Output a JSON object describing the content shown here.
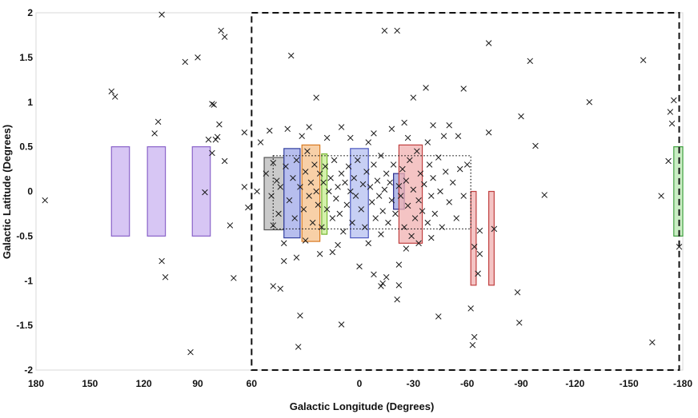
{
  "chart_data": {
    "type": "scatter",
    "title": "",
    "xlabel": "Galactic Longitude (Degrees)",
    "ylabel": "Galactic Latitude (Degrees)",
    "xlim": [
      180,
      -180
    ],
    "ylim": [
      -2,
      2
    ],
    "x_ticks": [
      180,
      150,
      120,
      90,
      60,
      0,
      -30,
      -60,
      -90,
      -120,
      -150,
      -180
    ],
    "x_tick_labels": [
      "180",
      "150",
      "120",
      "90",
      "60",
      "0",
      "-30",
      "-60",
      "-90",
      "-120",
      "-150",
      "-180"
    ],
    "y_ticks": [
      2,
      1.5,
      1,
      0.5,
      0,
      -0.5,
      -1,
      -1.5,
      -2
    ],
    "y_tick_labels": [
      "2",
      "1.5",
      "1",
      "0.5",
      "0",
      "-0.5",
      "-1",
      "-1.5",
      "-2"
    ],
    "grid": false,
    "legend": "none",
    "dashed_region": {
      "l_min": -178,
      "l_max": 60,
      "b_min": -2,
      "b_max": 2
    },
    "dotted_region": {
      "l_min": -62,
      "l_max": 48,
      "b_min": -0.42,
      "b_max": 0.4
    },
    "regions": [
      {
        "l_min": 128,
        "l_max": 138,
        "b_min": -0.5,
        "b_max": 0.5,
        "color": "#c9b3f0",
        "stroke": "#8a63c9"
      },
      {
        "l_min": 108,
        "l_max": 118,
        "b_min": -0.5,
        "b_max": 0.5,
        "color": "#c9b3f0",
        "stroke": "#8a63c9"
      },
      {
        "l_min": 83,
        "l_max": 93,
        "b_min": -0.5,
        "b_max": 0.5,
        "color": "#c9b3f0",
        "stroke": "#8a63c9"
      },
      {
        "l_min": 42,
        "l_max": 53,
        "b_min": -0.43,
        "b_max": 0.38,
        "color": "#b8b8b8",
        "stroke": "#555555"
      },
      {
        "l_min": 33,
        "l_max": 42,
        "b_min": -0.52,
        "b_max": 0.48,
        "color": "#9fa8e8",
        "stroke": "#3340a0"
      },
      {
        "l_min": 18,
        "l_max": 21,
        "b_min": -0.48,
        "b_max": 0.42,
        "color": "#c5ec8f",
        "stroke": "#78b832"
      },
      {
        "l_min": 22,
        "l_max": 32,
        "b_min": -0.56,
        "b_max": 0.52,
        "color": "#f6c08a",
        "stroke": "#d97a22"
      },
      {
        "l_min": -5,
        "l_max": 5,
        "b_min": -0.52,
        "b_max": 0.48,
        "color": "#b4bff0",
        "stroke": "#4a56c0"
      },
      {
        "l_min": -19,
        "l_max": -25,
        "b_min": -0.2,
        "b_max": 0.2,
        "color": "#9aa3e0",
        "stroke": "#2a2a8a"
      },
      {
        "l_min": -22,
        "l_max": -35,
        "b_min": -0.58,
        "b_max": 0.52,
        "color": "#f0b0b0",
        "stroke": "#c04040"
      },
      {
        "l_min": -62,
        "l_max": -65,
        "b_min": -1.05,
        "b_max": 0.0,
        "color": "#f0b0b0",
        "stroke": "#c04040"
      },
      {
        "l_min": -72,
        "l_max": -75,
        "b_min": -1.05,
        "b_max": 0.0,
        "color": "#f0b0b0",
        "stroke": "#c04040"
      },
      {
        "l_min": -175,
        "l_max": -180,
        "b_min": -0.5,
        "b_max": 0.5,
        "color": "#b8e8b0",
        "stroke": "#40a040"
      }
    ],
    "points": [
      [
        175,
        -0.1
      ],
      [
        138,
        1.12
      ],
      [
        136,
        1.06
      ],
      [
        110,
        1.98
      ],
      [
        112,
        0.78
      ],
      [
        110,
        -0.78
      ],
      [
        108,
        -0.96
      ],
      [
        114,
        0.65
      ],
      [
        97,
        1.45
      ],
      [
        90,
        1.5
      ],
      [
        94,
        -1.8
      ],
      [
        77,
        1.8
      ],
      [
        75,
        1.73
      ],
      [
        82,
        0.98
      ],
      [
        81,
        0.97
      ],
      [
        78,
        0.75
      ],
      [
        79,
        0.61
      ],
      [
        80,
        0.58
      ],
      [
        84,
        0.58
      ],
      [
        82,
        0.43
      ],
      [
        75,
        0.34
      ],
      [
        86,
        -0.01
      ],
      [
        72,
        -0.38
      ],
      [
        70,
        -0.97
      ],
      [
        62,
        -0.18
      ],
      [
        64,
        0.66
      ],
      [
        64,
        0.05
      ],
      [
        50,
        0.68
      ],
      [
        40,
        0.7
      ],
      [
        38,
        1.52
      ],
      [
        35,
        -0.74
      ],
      [
        33,
        -1.39
      ],
      [
        34,
        -1.74
      ],
      [
        48,
        -1.06
      ],
      [
        44,
        -1.09
      ],
      [
        42,
        -0.78
      ],
      [
        24,
        1.05
      ],
      [
        10,
        0.72
      ],
      [
        -14,
        1.8
      ],
      [
        -21,
        1.8
      ],
      [
        -25,
        0.77
      ],
      [
        -30,
        1.05
      ],
      [
        -37,
        1.16
      ],
      [
        -50,
        0.74
      ],
      [
        -58,
        1.15
      ],
      [
        -72,
        1.66
      ],
      [
        -72,
        0.66
      ],
      [
        -90,
        0.84
      ],
      [
        -95,
        1.46
      ],
      [
        -98,
        0.51
      ],
      [
        -103,
        -0.04
      ],
      [
        -128,
        1.0
      ],
      [
        -158,
        1.47
      ],
      [
        -163,
        -1.69
      ],
      [
        -168,
        -0.05
      ],
      [
        -172,
        0.34
      ],
      [
        -175,
        1.02
      ],
      [
        -173,
        0.89
      ],
      [
        -174,
        0.76
      ],
      [
        -178,
        -0.62
      ],
      [
        -88,
        -1.13
      ],
      [
        -89,
        -1.47
      ],
      [
        -62,
        -1.31
      ],
      [
        -64,
        -1.63
      ],
      [
        -63,
        -1.72
      ],
      [
        -64,
        -0.62
      ],
      [
        -66,
        -0.92
      ],
      [
        -67,
        -0.7
      ],
      [
        -75,
        -0.42
      ],
      [
        -67,
        -0.44
      ],
      [
        -44,
        -1.4
      ],
      [
        -22,
        -1.05
      ],
      [
        -21,
        -1.21
      ],
      [
        -13,
        -1.03
      ],
      [
        -15,
        -0.96
      ],
      [
        -8,
        -0.93
      ],
      [
        -12,
        -1.06
      ],
      [
        0,
        -0.84
      ],
      [
        10,
        -1.49
      ],
      [
        -22,
        -0.82
      ],
      [
        48,
        0.32
      ],
      [
        52,
        0.2
      ],
      [
        46,
        0.12
      ],
      [
        49,
        -0.05
      ],
      [
        45,
        -0.25
      ],
      [
        48,
        -0.38
      ],
      [
        44,
        0.05
      ],
      [
        41,
        0.28
      ],
      [
        39,
        -0.1
      ],
      [
        37,
        0.15
      ],
      [
        36,
        -0.3
      ],
      [
        35,
        0.35
      ],
      [
        33,
        0.05
      ],
      [
        31,
        -0.2
      ],
      [
        30,
        0.22
      ],
      [
        29,
        0.45
      ],
      [
        28,
        -0.05
      ],
      [
        27,
        0.1
      ],
      [
        26,
        -0.35
      ],
      [
        25,
        0.3
      ],
      [
        24,
        0.0
      ],
      [
        23,
        -0.15
      ],
      [
        22,
        0.2
      ],
      [
        21,
        -0.4
      ],
      [
        20,
        0.1
      ],
      [
        19,
        0.28
      ],
      [
        18,
        -0.2
      ],
      [
        17,
        0.0
      ],
      [
        16,
        0.15
      ],
      [
        15,
        -0.3
      ],
      [
        14,
        0.35
      ],
      [
        13,
        -0.08
      ],
      [
        12,
        0.05
      ],
      [
        11,
        -0.25
      ],
      [
        10,
        0.2
      ],
      [
        9,
        -0.45
      ],
      [
        8,
        0.1
      ],
      [
        7,
        -0.15
      ],
      [
        6,
        0.28
      ],
      [
        5,
        0.0
      ],
      [
        4,
        -0.35
      ],
      [
        3,
        0.15
      ],
      [
        2,
        -0.05
      ],
      [
        1,
        0.35
      ],
      [
        -1,
        -0.2
      ],
      [
        -2,
        0.08
      ],
      [
        -3,
        -0.4
      ],
      [
        -4,
        0.22
      ],
      [
        -6,
        0.05
      ],
      [
        -7,
        -0.12
      ],
      [
        -8,
        0.3
      ],
      [
        -9,
        -0.3
      ],
      [
        -10,
        0.12
      ],
      [
        -11,
        -0.05
      ],
      [
        -12,
        0.4
      ],
      [
        -13,
        -0.22
      ],
      [
        -14,
        0.02
      ],
      [
        -15,
        0.2
      ],
      [
        -16,
        -0.35
      ],
      [
        -17,
        0.1
      ],
      [
        -18,
        -0.1
      ],
      [
        -19,
        0.3
      ],
      [
        -20,
        -0.25
      ],
      [
        -22,
        0.06
      ],
      [
        -23,
        -0.05
      ],
      [
        -24,
        0.25
      ],
      [
        -25,
        -0.4
      ],
      [
        -26,
        0.12
      ],
      [
        -27,
        -0.16
      ],
      [
        -28,
        0.35
      ],
      [
        -29,
        -0.5
      ],
      [
        -30,
        0.02
      ],
      [
        -31,
        -0.3
      ],
      [
        -32,
        0.45
      ],
      [
        -33,
        -0.1
      ],
      [
        -34,
        0.2
      ],
      [
        -35,
        -0.22
      ],
      [
        -36,
        0.08
      ],
      [
        -38,
        -0.35
      ],
      [
        -39,
        0.3
      ],
      [
        -40,
        -0.05
      ],
      [
        -41,
        0.15
      ],
      [
        -42,
        -0.25
      ],
      [
        -44,
        0.38
      ],
      [
        -45,
        0.0
      ],
      [
        -46,
        -0.4
      ],
      [
        -48,
        0.22
      ],
      [
        -50,
        -0.12
      ],
      [
        -52,
        0.1
      ],
      [
        -54,
        -0.3
      ],
      [
        -56,
        0.25
      ],
      [
        -58,
        -0.05
      ],
      [
        -60,
        0.3
      ],
      [
        -47,
        0.62
      ],
      [
        -38,
        0.55
      ],
      [
        -27,
        0.6
      ],
      [
        -18,
        0.7
      ],
      [
        -8,
        0.65
      ],
      [
        5,
        0.6
      ],
      [
        18,
        0.6
      ],
      [
        32,
        0.62
      ],
      [
        28,
        0.72
      ],
      [
        -5,
        0.55
      ],
      [
        -41,
        0.74
      ],
      [
        -55,
        0.62
      ],
      [
        55,
        0.55
      ],
      [
        57,
        0.0
      ],
      [
        30,
        -0.55
      ],
      [
        12,
        -0.6
      ],
      [
        -5,
        -0.58
      ],
      [
        -26,
        -0.64
      ],
      [
        -33,
        -0.58
      ],
      [
        -40,
        -0.52
      ],
      [
        22,
        -0.7
      ],
      [
        15,
        -0.68
      ],
      [
        42,
        -0.58
      ],
      [
        -12,
        -0.48
      ]
    ]
  }
}
